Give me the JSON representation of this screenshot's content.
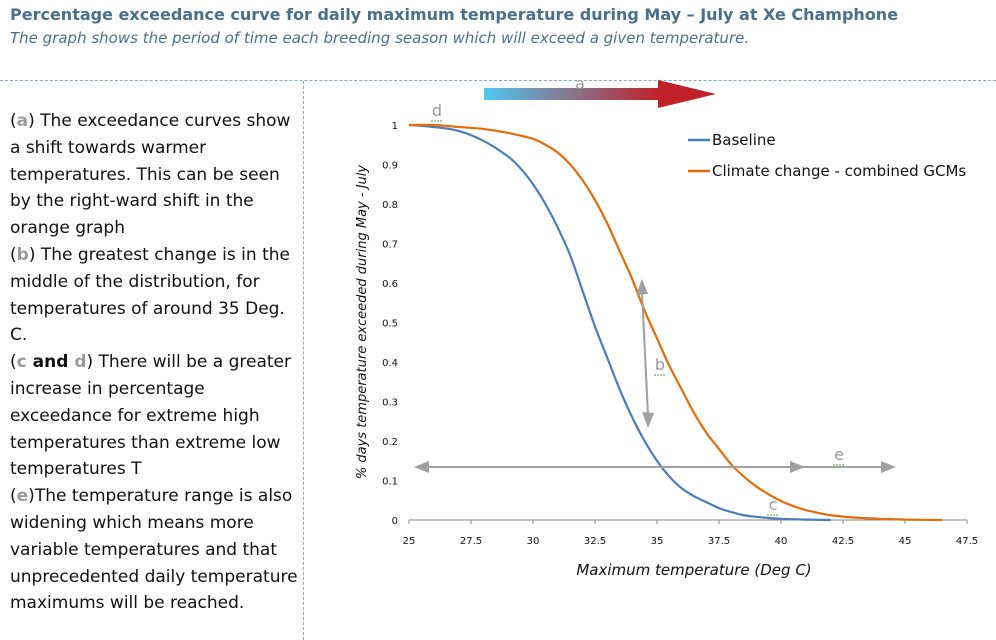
{
  "header": {
    "title": "Percentage exceedance curve for daily maximum temperature during May – July at Xe Champhone",
    "subtitle": "The graph shows the period of time each breeding season which will exceed a given temperature."
  },
  "notes": {
    "a_key": "a",
    "a_text": " The exceedance curves show a shift towards warmer temperatures. This can be seen by the right-ward shift in the orange graph",
    "b_key": "b",
    "b_text": "  The greatest change is in the middle of the distribution, for temperatures of around 35 Deg. C.",
    "c_key": "c",
    "c_and": " and ",
    "d_key": "d",
    "cd_text": " There will be a greater increase in percentage exceedance for extreme high temperatures than extreme low temperatures T",
    "e_key": "e",
    "e_text": "The temperature range is also widening which means more variable temperatures and that unprecedented daily temperature maximums will be reached."
  },
  "chart_data": {
    "type": "line",
    "title": "",
    "xlabel": "Maximum temperature (Deg C)",
    "ylabel": "% days temperature exceeded during May - July",
    "xlim": [
      25,
      47.5
    ],
    "ylim": [
      0,
      1
    ],
    "x_ticks": [
      "25",
      "27.5",
      "30",
      "32.5",
      "35",
      "37.5",
      "40",
      "42.5",
      "45",
      "47.5"
    ],
    "y_ticks": [
      "0",
      "0.1",
      "0.2",
      "0.3",
      "0.4",
      "0.5",
      "0.6",
      "0.7",
      "0.8",
      "0.9",
      "1"
    ],
    "grid": false,
    "legend_position": "top-right",
    "series": [
      {
        "name": "Baseline",
        "color": "#4a7ebb",
        "x": [
          25,
          26,
          27,
          28,
          29,
          29.5,
          30,
          30.5,
          31,
          31.5,
          32,
          32.5,
          33,
          33.5,
          34,
          34.5,
          35,
          35.5,
          36,
          36.5,
          37,
          37.5,
          38,
          38.5,
          39,
          39.5,
          40,
          41,
          42
        ],
        "y": [
          1.0,
          0.995,
          0.985,
          0.96,
          0.92,
          0.89,
          0.85,
          0.8,
          0.74,
          0.67,
          0.58,
          0.49,
          0.41,
          0.33,
          0.26,
          0.2,
          0.15,
          0.11,
          0.08,
          0.06,
          0.045,
          0.03,
          0.02,
          0.012,
          0.008,
          0.005,
          0.003,
          0.001,
          0.0
        ]
      },
      {
        "name": "Climate change - combined GCMs",
        "color": "#e36c09",
        "x": [
          25,
          26,
          27,
          28,
          29,
          30,
          30.5,
          31,
          31.5,
          32,
          32.5,
          33,
          33.5,
          34,
          34.5,
          35,
          35.5,
          36,
          36.5,
          37,
          37.5,
          38,
          38.5,
          39,
          39.5,
          40,
          40.5,
          41,
          41.5,
          42,
          43,
          44,
          45,
          46.5
        ],
        "y": [
          1.0,
          1.0,
          0.995,
          0.99,
          0.98,
          0.965,
          0.95,
          0.93,
          0.9,
          0.86,
          0.81,
          0.75,
          0.68,
          0.61,
          0.53,
          0.46,
          0.39,
          0.33,
          0.27,
          0.22,
          0.18,
          0.14,
          0.11,
          0.085,
          0.065,
          0.048,
          0.035,
          0.025,
          0.018,
          0.012,
          0.006,
          0.003,
          0.001,
          0.0
        ]
      }
    ],
    "annotations": [
      {
        "label": "a"
      },
      {
        "label": "b"
      },
      {
        "label": "c"
      },
      {
        "label": "d"
      },
      {
        "label": "e"
      }
    ]
  },
  "colors": {
    "title": "#4a6f8a",
    "annotation": "#9a9a9a",
    "arrow_a_start": "#4fc8f0",
    "arrow_a_end": "#c0202a"
  }
}
